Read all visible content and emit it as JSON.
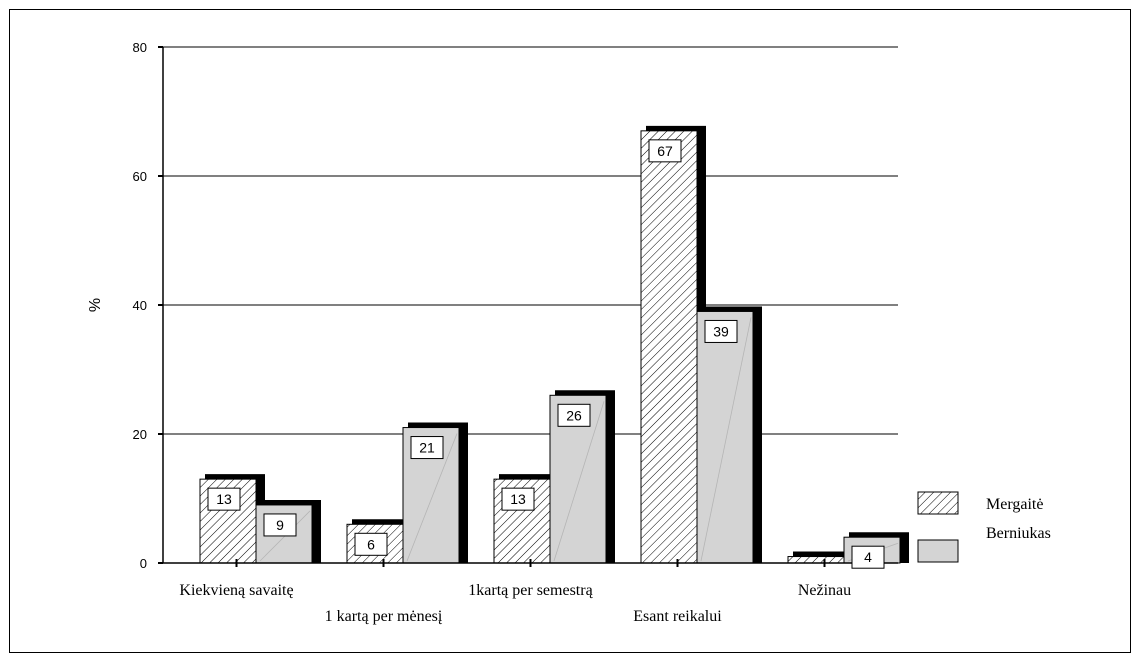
{
  "chart_data": {
    "type": "bar",
    "ylabel": "%",
    "ylim": [
      0,
      80
    ],
    "yticks": [
      0,
      20,
      40,
      60,
      80
    ],
    "grid": true,
    "legend_position": "bottom-right",
    "categories": [
      "Kiekvieną savaitę",
      "1 kartą per mėnesį",
      "1kartą per semestrą",
      "Esant reikalui",
      "Nežinau"
    ],
    "series": [
      {
        "name": "Mergaitė",
        "values": [
          13,
          6,
          13,
          67,
          1
        ],
        "labels": [
          "13",
          "6",
          "13",
          "67",
          ""
        ],
        "pattern": "hatch"
      },
      {
        "name": "Berniukas",
        "values": [
          9,
          21,
          26,
          39,
          4
        ],
        "labels": [
          "9",
          "21",
          "26",
          "39",
          "4"
        ],
        "color": "#d4d4d4"
      }
    ]
  }
}
